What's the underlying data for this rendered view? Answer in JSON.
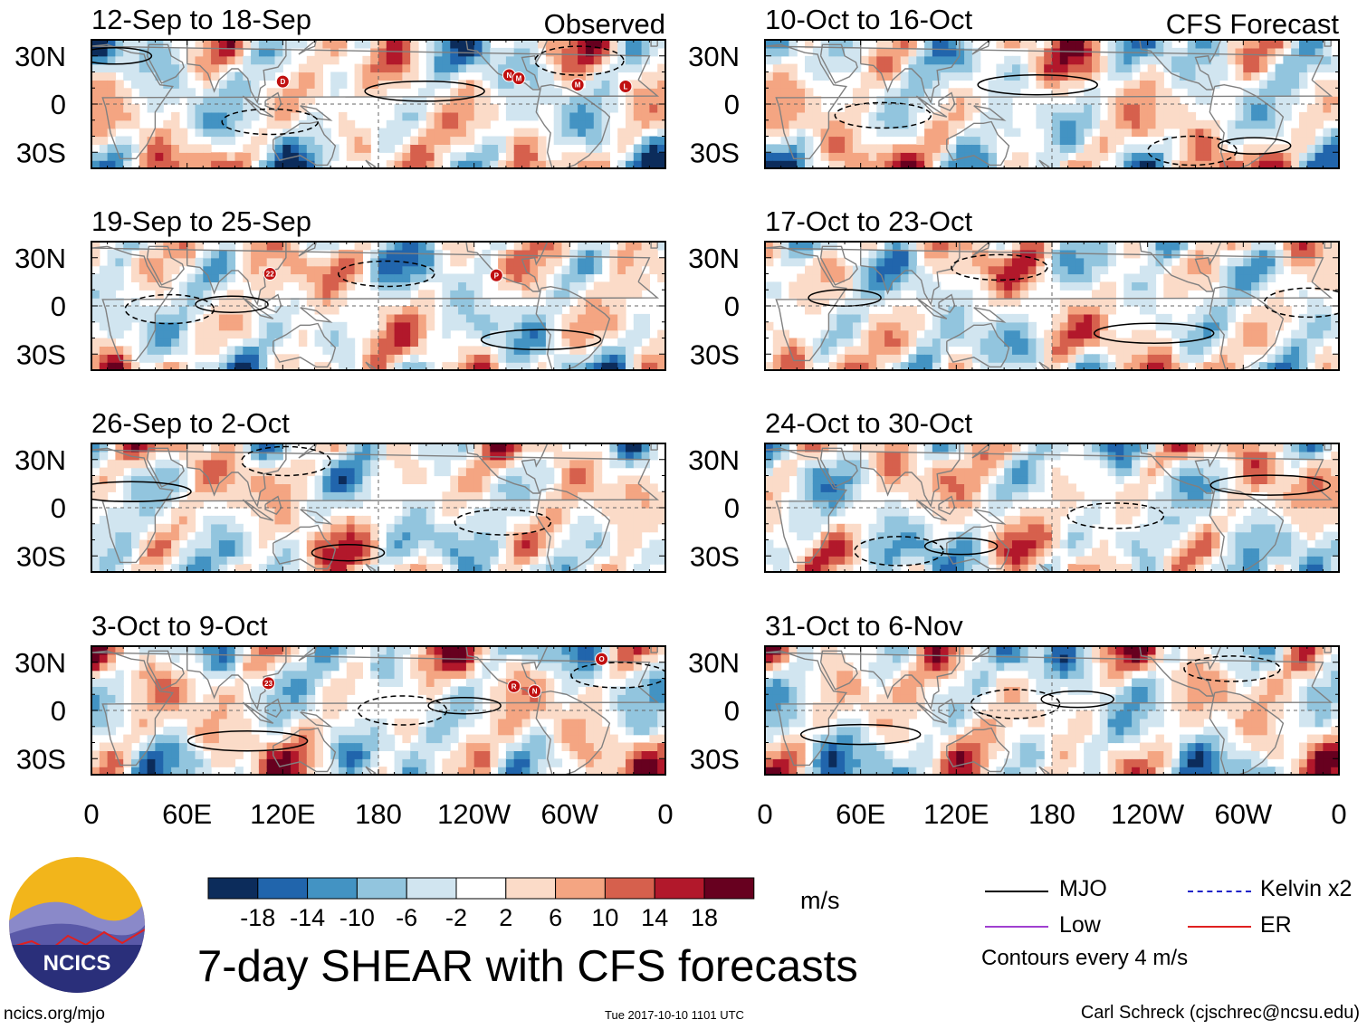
{
  "colors": {
    "levels": [
      "#0c2c5b",
      "#2165ac",
      "#4393c3",
      "#92c5de",
      "#d1e5f0",
      "#ffffff",
      "#fbdbc8",
      "#f4a582",
      "#d6604d",
      "#b2182b",
      "#67001f"
    ],
    "land_line": "#808080",
    "mjo": "#000000",
    "kelvin": "#1f23c9",
    "low": "#a040d0",
    "er": "#e02020",
    "storm": "#c01010"
  },
  "chart_data": {
    "type": "heatmap",
    "title": "7-day SHEAR with CFS forecasts",
    "left_column_label": "Observed",
    "right_column_label": "CFS Forecast",
    "x_tick_labels": [
      "0",
      "60E",
      "120E",
      "180",
      "120W",
      "60W",
      "0"
    ],
    "y_tick_labels": [
      "30N",
      "0",
      "30S"
    ],
    "lon_range": [
      0,
      360
    ],
    "lat_range": [
      -40,
      40
    ],
    "panels": [
      {
        "period": "12-Sep to 18-Sep",
        "source": "Observed",
        "storms": [
          {
            "label": "D",
            "lon": 120,
            "lat": 14
          },
          {
            "label": "N",
            "lon": 262,
            "lat": 18
          },
          {
            "label": "M",
            "lon": 268,
            "lat": 16
          },
          {
            "label": "M",
            "lon": 305,
            "lat": 12
          },
          {
            "label": "L",
            "lon": 335,
            "lat": 11
          }
        ]
      },
      {
        "period": "19-Sep to 25-Sep",
        "source": "Observed",
        "storms": [
          {
            "label": "22",
            "lon": 112,
            "lat": 20
          },
          {
            "label": "P",
            "lon": 254,
            "lat": 19
          }
        ]
      },
      {
        "period": "26-Sep to 2-Oct",
        "source": "Observed",
        "storms": []
      },
      {
        "period": "3-Oct to 9-Oct",
        "source": "Observed",
        "storms": [
          {
            "label": "23",
            "lon": 111,
            "lat": 17
          },
          {
            "label": "R",
            "lon": 265,
            "lat": 15
          },
          {
            "label": "N",
            "lon": 278,
            "lat": 12
          },
          {
            "label": "O",
            "lon": 320,
            "lat": 32
          }
        ]
      },
      {
        "period": "10-Oct to 16-Oct",
        "source": "CFS Forecast",
        "storms": []
      },
      {
        "period": "17-Oct to 23-Oct",
        "source": "CFS Forecast",
        "storms": []
      },
      {
        "period": "24-Oct to 30-Oct",
        "source": "CFS Forecast",
        "storms": []
      },
      {
        "period": "31-Oct to 6-Nov",
        "source": "CFS Forecast",
        "storms": []
      }
    ],
    "colorbar": {
      "units": "m/s",
      "ticks": [
        "-18",
        "-14",
        "-10",
        "-6",
        "-2",
        "2",
        "6",
        "10",
        "14",
        "18"
      ]
    },
    "legend": {
      "mjo": "MJO",
      "kelvin": "Kelvin x2",
      "low": "Low",
      "er": "ER",
      "contours": "Contours every 4 m/s"
    }
  },
  "footer": {
    "logo_text": "NCICS",
    "site": "ncics.org/mjo",
    "timestamp": "Tue 2017-10-10 1101 UTC",
    "author": "Carl Schreck (cjschrec@ncsu.edu)"
  }
}
